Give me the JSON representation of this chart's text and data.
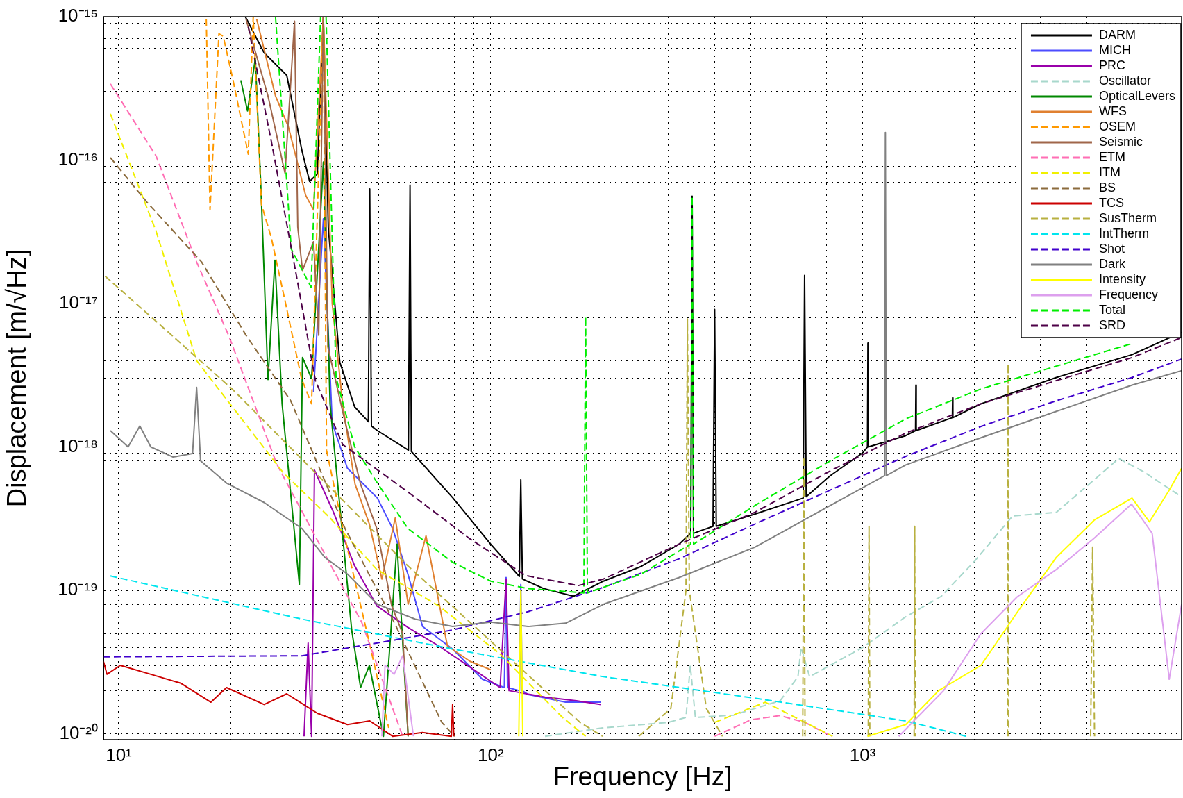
{
  "chart_data": {
    "type": "line",
    "xlabel": "Frequency [Hz]",
    "ylabel": "Displacement [m/√Hz]",
    "log": "xy",
    "grid": true,
    "legend": "top right",
    "marker": "none",
    "xlim": [
      9.1,
      7200
    ],
    "ylim": [
      9.1e-21,
      1e-15
    ],
    "xticks": [
      {
        "value": 10,
        "label": "10¹"
      },
      {
        "value": 20,
        "label": null
      },
      {
        "value": 30,
        "label": null
      },
      {
        "value": 40,
        "label": null
      },
      {
        "value": 50,
        "label": null
      },
      {
        "value": 60,
        "label": null
      },
      {
        "value": 70,
        "label": null
      },
      {
        "value": 80,
        "label": null
      },
      {
        "value": 90,
        "label": null
      },
      {
        "value": 100,
        "label": "10²"
      },
      {
        "value": 200,
        "label": null
      },
      {
        "value": 300,
        "label": null
      },
      {
        "value": 400,
        "label": null
      },
      {
        "value": 500,
        "label": null
      },
      {
        "value": 600,
        "label": null
      },
      {
        "value": 700,
        "label": null
      },
      {
        "value": 800,
        "label": null
      },
      {
        "value": 900,
        "label": null
      },
      {
        "value": 1000,
        "label": "10³"
      },
      {
        "value": 2000,
        "label": null
      },
      {
        "value": 3000,
        "label": null
      },
      {
        "value": 4000,
        "label": null
      },
      {
        "value": 5000,
        "label": null
      },
      {
        "value": 6000,
        "label": null
      },
      {
        "value": 7000,
        "label": null
      }
    ],
    "yticks": [
      {
        "value": 1e-20,
        "label": "10⁻²⁰"
      },
      {
        "value": 2e-20,
        "label": null
      },
      {
        "value": 3e-20,
        "label": null
      },
      {
        "value": 4e-20,
        "label": null
      },
      {
        "value": 5e-20,
        "label": null
      },
      {
        "value": 6e-20,
        "label": null
      },
      {
        "value": 7e-20,
        "label": null
      },
      {
        "value": 8e-20,
        "label": null
      },
      {
        "value": 9e-20,
        "label": null
      },
      {
        "value": 1e-19,
        "label": "10⁻¹⁹"
      },
      {
        "value": 2e-19,
        "label": null
      },
      {
        "value": 3e-19,
        "label": null
      },
      {
        "value": 4e-19,
        "label": null
      },
      {
        "value": 5e-19,
        "label": null
      },
      {
        "value": 6e-19,
        "label": null
      },
      {
        "value": 7e-19,
        "label": null
      },
      {
        "value": 8e-19,
        "label": null
      },
      {
        "value": 9e-19,
        "label": null
      },
      {
        "value": 1e-18,
        "label": "10⁻¹⁸"
      },
      {
        "value": 2e-18,
        "label": null
      },
      {
        "value": 3e-18,
        "label": null
      },
      {
        "value": 4e-18,
        "label": null
      },
      {
        "value": 5e-18,
        "label": null
      },
      {
        "value": 6e-18,
        "label": null
      },
      {
        "value": 7e-18,
        "label": null
      },
      {
        "value": 8e-18,
        "label": null
      },
      {
        "value": 9e-18,
        "label": null
      },
      {
        "value": 1e-17,
        "label": "10⁻¹⁷"
      },
      {
        "value": 2e-17,
        "label": null
      },
      {
        "value": 3e-17,
        "label": null
      },
      {
        "value": 4e-17,
        "label": null
      },
      {
        "value": 5e-17,
        "label": null
      },
      {
        "value": 6e-17,
        "label": null
      },
      {
        "value": 7e-17,
        "label": null
      },
      {
        "value": 8e-17,
        "label": null
      },
      {
        "value": 9e-17,
        "label": null
      },
      {
        "value": 1e-16,
        "label": "10⁻¹⁶"
      },
      {
        "value": 2e-16,
        "label": null
      },
      {
        "value": 3e-16,
        "label": null
      },
      {
        "value": 4e-16,
        "label": null
      },
      {
        "value": 5e-16,
        "label": null
      },
      {
        "value": 6e-16,
        "label": null
      },
      {
        "value": 7e-16,
        "label": null
      },
      {
        "value": 8e-16,
        "label": null
      },
      {
        "value": 9e-16,
        "label": null
      },
      {
        "value": 1e-15,
        "label": "10⁻¹⁵"
      }
    ],
    "series": [
      {
        "name": "DARM",
        "color": "#000000",
        "line_style": "solid",
        "x": [
          21.9,
          24.6,
          28.3,
          31.1,
          32.6,
          34.2,
          35.5,
          36.6,
          39.3,
          43.1,
          46.9,
          47.3,
          47.8,
          49.6,
          60.1,
          60.7,
          61.2,
          79.2,
          100,
          119.4,
          120.5,
          121.7,
          138.7,
          167,
          201,
          254,
          321,
          345,
          348,
          351,
          396,
          400,
          404,
          513,
          692,
          698,
          705,
          818,
          1000,
          1030,
          1033,
          1036,
          1306,
          1387,
          1390,
          1393,
          1742,
          1745,
          1748,
          2080,
          3317,
          5297,
          7200
        ],
        "values": [
          1e-15,
          5.6e-16,
          3.9e-16,
          1.16e-16,
          7.1e-17,
          8e-17,
          1e-15,
          3.4e-17,
          3.9e-18,
          1.9e-18,
          1.5e-18,
          6.3e-17,
          1.4e-18,
          1.3e-18,
          9.5e-19,
          6.7e-17,
          9.3e-19,
          4.4e-19,
          2.1e-19,
          1.25e-19,
          5.9e-19,
          1.2e-19,
          1.03e-19,
          9.1e-20,
          1.16e-19,
          1.47e-19,
          2.1e-19,
          2.5e-19,
          5.6e-17,
          2.5e-19,
          2.8e-19,
          9.1e-18,
          2.8e-19,
          3.4e-19,
          4.4e-19,
          1.57e-17,
          4.5e-19,
          6.3e-19,
          9.1e-19,
          1e-18,
          5.3e-18,
          1e-18,
          1.2e-18,
          1.3e-18,
          2.7e-18,
          1.3e-18,
          1.6e-18,
          2.2e-18,
          1.6e-18,
          2e-18,
          3.05e-18,
          4.4e-18,
          6.3e-18
        ]
      },
      {
        "name": "MICH",
        "color": "#4d4dff",
        "line_style": "solid",
        "x": [
          33.4,
          35.5,
          37.5,
          41.2,
          45.2,
          49.6,
          54.5,
          59.9,
          65.6,
          79,
          95,
          108.8,
          110,
          111,
          119.5,
          120.5,
          121.5,
          126,
          159,
          198
        ],
        "values": [
          2.4e-18,
          3.9e-17,
          1.47e-18,
          7.1e-19,
          5.6e-19,
          4.4e-19,
          2.7e-19,
          1.3e-19,
          5.6e-20,
          3.9e-20,
          2.4e-20,
          2.1e-20,
          1.23e-19,
          2.1e-20,
          2e-20,
          1.1e-19,
          2e-20,
          1.88e-20,
          1.66e-20,
          1.66e-20
        ]
      },
      {
        "name": "PRC",
        "color": "#9900aa",
        "line_style": "solid",
        "x": [
          31.5,
          32.3,
          33,
          33.6,
          37.8,
          43,
          49.4,
          60,
          72.5,
          90,
          106,
          110,
          112,
          140,
          170,
          198
        ],
        "values": [
          9.6e-21,
          4.3e-20,
          9.6e-21,
          6.9e-19,
          3.5e-19,
          1.5e-19,
          7.8e-20,
          5.5e-20,
          4.1e-20,
          2.8e-20,
          2.1e-20,
          1.2e-19,
          2e-20,
          1.8e-20,
          1.7e-20,
          1.6e-20
        ]
      },
      {
        "name": "Oscillator",
        "color": "#a8d8cc",
        "line_style": "dashed",
        "x": [
          140,
          200,
          300,
          335,
          344,
          355,
          450,
          600,
          670,
          683,
          720,
          1000,
          1300,
          1627,
          2000,
          2530,
          3317,
          4880,
          5700,
          6600,
          7200
        ],
        "values": [
          9.6e-21,
          1.1e-20,
          1.2e-20,
          1.3e-20,
          3e-20,
          1.3e-20,
          1.35e-20,
          1.7e-20,
          2.5e-20,
          4e-20,
          2.5e-20,
          4e-20,
          6.5e-20,
          9.1e-20,
          1.6e-19,
          3.3e-19,
          3.5e-19,
          8.3e-19,
          6.7e-19,
          5.2e-19,
          4.5e-19
        ]
      },
      {
        "name": "OpticalLevers",
        "color": "#008800",
        "line_style": "solid",
        "x": [
          21.3,
          22.2,
          23.3,
          24.2,
          25.2,
          26.3,
          27.5,
          30.6,
          31.2,
          33,
          35.5,
          37,
          42.3,
          44.7,
          47.2,
          51.5,
          56,
          60
        ],
        "values": [
          3.6e-16,
          2.2e-16,
          5.1e-16,
          5.2e-17,
          2.95e-18,
          2e-17,
          2e-18,
          1.1e-19,
          4.2e-18,
          3e-18,
          9.7e-17,
          2e-18,
          5.3e-20,
          2.1e-20,
          3e-20,
          9.6e-21,
          2.1e-19,
          9.6e-21
        ]
      },
      {
        "name": "WFS",
        "color": "#e08030",
        "line_style": "solid",
        "x": [
          23.5,
          26.4,
          28.6,
          31.8,
          33.4,
          35.5,
          37.5,
          40,
          43.2,
          47.2,
          51,
          55.4,
          60,
          67,
          76.5,
          88,
          100
        ],
        "values": [
          9.6e-16,
          2.8e-16,
          1.7e-16,
          5.7e-17,
          4.5e-17,
          1e-15,
          1e-17,
          2e-18,
          5.5e-19,
          2.9e-19,
          1.2e-19,
          3.2e-19,
          8e-20,
          2.4e-19,
          4.1e-20,
          3.2e-20,
          2.8e-20
        ]
      },
      {
        "name": "OSEM",
        "color": "#ff9900",
        "line_style": "dashed",
        "x": [
          17.2,
          17.6,
          18.6,
          19.1,
          20.3,
          22.3,
          23,
          24.2,
          25.7,
          28.1,
          31,
          33,
          35.5,
          36.2,
          40.6,
          47.2,
          53.2
        ],
        "values": [
          9.6e-16,
          4.5e-17,
          7.6e-16,
          7.3e-16,
          3.6e-16,
          1.1e-16,
          1e-15,
          4.9e-17,
          2.9e-17,
          1e-17,
          3e-18,
          2e-18,
          1e-15,
          9.5e-19,
          2.3e-19,
          4.3e-20,
          1.1e-20
        ]
      },
      {
        "name": "Seismic",
        "color": "#a0664a",
        "line_style": "solid",
        "x": [
          22,
          25.2,
          28,
          29.7,
          30.3,
          31.2,
          33.4,
          34.5,
          35.5,
          36.5,
          40.6,
          44.7,
          49.4,
          54.2,
          58,
          60
        ],
        "values": [
          9.6e-16,
          2.8e-16,
          8.1e-17,
          9.3e-16,
          3.4e-17,
          1.7e-17,
          2.7e-17,
          6e-18,
          1e-15,
          5e-18,
          1.5e-18,
          5.5e-19,
          2.7e-19,
          7.8e-20,
          5e-20,
          9.6e-21
        ]
      },
      {
        "name": "ETM",
        "color": "#ff6eb4",
        "line_style": "dashed",
        "x": [
          9.5,
          12.6,
          16.2,
          19.8,
          26.6,
          35,
          45,
          58,
          150,
          400,
          500,
          598,
          700,
          825
        ],
        "values": [
          3.4e-16,
          1.07e-16,
          1.95e-17,
          5.9e-18,
          7.6e-19,
          2e-19,
          6e-20,
          9.6e-21,
          null,
          9.6e-21,
          1.25e-20,
          1.34e-20,
          1.2e-20,
          9.6e-21
        ]
      },
      {
        "name": "ITM",
        "color": "#f0f000",
        "line_style": "dashed",
        "x": [
          9.5,
          12.6,
          16.2,
          27.7,
          37,
          49.4,
          72.5,
          106,
          156,
          180,
          300,
          400,
          547,
          700,
          830
        ],
        "values": [
          2.1e-16,
          3.2e-17,
          4e-18,
          6.6e-19,
          3.2e-19,
          1.4e-19,
          7.8e-20,
          3.6e-20,
          1.3e-20,
          9.6e-21,
          null,
          1.2e-20,
          1.66e-20,
          1.2e-20,
          9.6e-21
        ]
      },
      {
        "name": "BS",
        "color": "#8b6b3c",
        "line_style": "dashed",
        "x": [
          9.5,
          11.9,
          16.7,
          22,
          29,
          40.6,
          55,
          73.9,
          80
        ],
        "values": [
          1.04e-16,
          5.1e-17,
          1.95e-17,
          6e-18,
          2.1e-18,
          2.7e-19,
          6e-20,
          1.2e-20,
          9.6e-21
        ]
      },
      {
        "name": "TCS",
        "color": "#cc0000",
        "line_style": "solid",
        "x": [
          9.1,
          9.3,
          10.1,
          12.2,
          14.7,
          17.7,
          19.5,
          24.6,
          28.3,
          34.2,
          41.2,
          47.3,
          54.5,
          65.6,
          78.4,
          79,
          79.6
        ],
        "values": [
          3.2e-20,
          2.6e-20,
          3e-20,
          2.6e-20,
          2.25e-20,
          1.66e-20,
          2.1e-20,
          1.6e-20,
          1.9e-20,
          1.39e-20,
          1.16e-20,
          1.23e-20,
          9.6e-21,
          1.02e-20,
          9.6e-21,
          1.6e-20,
          9.6e-21
        ]
      },
      {
        "name": "SusTherm",
        "color": "#b8b040",
        "line_style": "dashed",
        "x": [
          9.2,
          14,
          20.3,
          59.6,
          174,
          200,
          225,
          250,
          305,
          335,
          338,
          342,
          380,
          420,
          550,
          690,
          695,
          700,
          850,
          1035,
          1040,
          1045,
          1200,
          1375,
          1380,
          1385,
          2000,
          2450,
          2460,
          2470,
          3300,
          4100,
          4150,
          4200
        ],
        "values": [
          1.55e-17,
          5.9e-18,
          2.5e-18,
          1.5e-19,
          1.2e-20,
          9.6e-21,
          null,
          9.6e-21,
          1.5e-20,
          1e-19,
          7.8e-18,
          1e-19,
          1.5e-20,
          9.6e-21,
          null,
          9.6e-21,
          8.5e-19,
          9.6e-21,
          null,
          9.6e-21,
          2.8e-19,
          9.6e-21,
          null,
          9.6e-21,
          2.8e-19,
          9.6e-21,
          null,
          9.6e-21,
          3.8e-18,
          9.6e-21,
          null,
          9.6e-21,
          2e-19,
          9.6e-21
        ]
      },
      {
        "name": "IntTherm",
        "color": "#00e5ee",
        "line_style": "dashed",
        "x": [
          9.5,
          31.1,
          79,
          201,
          513,
          1306,
          1900
        ],
        "values": [
          1.26e-19,
          6.3e-20,
          3.9e-20,
          2.5e-20,
          1.77e-20,
          1.23e-20,
          9.6e-21
        ]
      },
      {
        "name": "Shot",
        "color": "#4000cc",
        "line_style": "dashed",
        "x": [
          9.1,
          31.1,
          49.6,
          79,
          126,
          201,
          321,
          513,
          818,
          1306,
          2080,
          3317,
          5297,
          7200
        ],
        "values": [
          3.44e-20,
          3.5e-20,
          4.3e-20,
          5.3e-20,
          7.1e-20,
          1.05e-19,
          1.66e-19,
          2.9e-19,
          5e-19,
          8.6e-19,
          1.39e-18,
          2.1e-18,
          3.05e-18,
          4.1e-18
        ]
      },
      {
        "name": "Dark",
        "color": "#808080",
        "line_style": "solid",
        "x": [
          9.5,
          10.6,
          11.4,
          12.2,
          14,
          15.8,
          16.2,
          16.6,
          19.5,
          24.6,
          31.1,
          35.8,
          41.2,
          49.6,
          62.7,
          79,
          100,
          126,
          159,
          201,
          321,
          513,
          818,
          1145,
          1151,
          1157,
          1306,
          2080,
          3317,
          5297,
          7200
        ],
        "values": [
          1.3e-18,
          1e-18,
          1.4e-18,
          1e-18,
          8.5e-19,
          9e-19,
          2.6e-18,
          8e-19,
          5.6e-19,
          4.1e-19,
          2.7e-19,
          1.7e-19,
          1.3e-19,
          8e-20,
          6.3e-20,
          5.6e-20,
          6e-20,
          5.6e-20,
          5.9e-20,
          8e-20,
          1.23e-19,
          2e-19,
          3.9e-19,
          6.3e-19,
          1.56e-16,
          6.3e-19,
          7.5e-19,
          1.16e-18,
          1.77e-18,
          2.7e-18,
          3.4e-18
        ]
      },
      {
        "name": "Intensity",
        "color": "#ffff00",
        "line_style": "solid",
        "x": [
          119,
          120.5,
          122,
          500,
          1030,
          1306,
          1600,
          2080,
          2600,
          3317,
          4200,
          5297,
          5900,
          6669,
          7200
        ],
        "values": [
          9.6e-21,
          1e-19,
          9.6e-21,
          null,
          9.6e-21,
          1.16e-20,
          2e-20,
          3e-20,
          7e-20,
          1.7e-19,
          3.1e-19,
          4.4e-19,
          3e-19,
          5e-19,
          7.1e-19
        ]
      },
      {
        "name": "Frequency",
        "color": "#dda0ee",
        "line_style": "solid",
        "x": [
          51,
          52,
          55,
          58,
          62,
          300,
          1250,
          1650,
          2080,
          2600,
          3317,
          4183,
          5282,
          6000,
          6669,
          7200
        ],
        "values": [
          9.6e-21,
          3e-20,
          2.6e-20,
          3.5e-20,
          9.6e-21,
          null,
          9.6e-21,
          2e-20,
          5e-20,
          9e-20,
          1.4e-19,
          2.3e-19,
          4e-19,
          2.5e-19,
          2.4e-20,
          8e-20
        ]
      },
      {
        "name": "Total",
        "color": "#00ee00",
        "line_style": "dashed",
        "x": [
          26.4,
          29.1,
          32.9,
          34.9,
          36.1,
          38.4,
          43.1,
          49.6,
          59.9,
          79,
          100,
          126,
          178,
          180,
          182,
          254,
          321,
          345,
          348,
          351,
          513,
          818,
          1306,
          2080,
          3317,
          5297
        ],
        "values": [
          1e-15,
          2.4e-17,
          1.3e-17,
          1e-15,
          1e-15,
          3.05e-18,
          1e-18,
          5.6e-19,
          2.7e-19,
          1.57e-19,
          1.16e-19,
          1.03e-19,
          9.6e-20,
          8.1e-18,
          9.6e-20,
          1.3e-19,
          1.88e-19,
          2.1e-19,
          5.6e-17,
          2.1e-19,
          3.9e-19,
          8e-19,
          1.57e-18,
          2.54e-18,
          3.66e-18,
          5.26e-18
        ]
      },
      {
        "name": "SRD",
        "color": "#4d0047",
        "line_style": "dashed",
        "x": [
          22.3,
          25.7,
          30,
          33.8,
          40,
          59.6,
          87.7,
          124,
          172,
          201,
          321,
          513,
          818,
          1306,
          2080,
          3317,
          5297,
          7200
        ],
        "values": [
          8.5e-16,
          1.37e-16,
          1.6e-17,
          2.9e-18,
          1.04e-18,
          4.9e-19,
          2.3e-19,
          1.27e-19,
          1.08e-19,
          1.2e-19,
          2.1e-19,
          3.5e-19,
          6.8e-19,
          1.25e-18,
          2e-18,
          2.9e-18,
          4.2e-18,
          5.8e-18
        ]
      }
    ]
  }
}
